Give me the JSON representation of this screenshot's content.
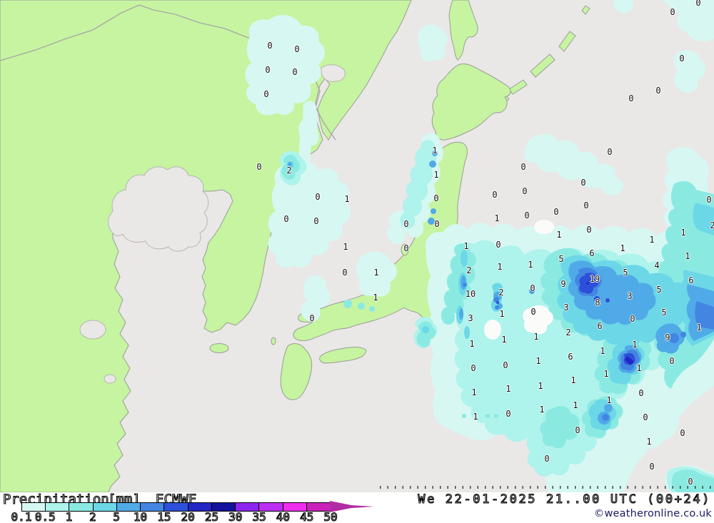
{
  "header": {
    "product": "Precipitation",
    "unit": "[mm]",
    "model": "ECMWF"
  },
  "footer": {
    "datetime": "We 22-01-2025 21..00 UTC (00+24)",
    "copyright": "©weatheronline.co.uk"
  },
  "legend": {
    "labels": [
      "0.1",
      "0.5",
      "1",
      "2",
      "5",
      "10",
      "15",
      "20",
      "25",
      "30",
      "35",
      "40",
      "45",
      "50"
    ],
    "colors": [
      "#d7f7f2",
      "#aef3ec",
      "#8aeae2",
      "#6cd7e7",
      "#51aae8",
      "#4386e2",
      "#2c50d9",
      "#2326c4",
      "#14139e",
      "#8d25ee",
      "#bd2ef2",
      "#ee2dee",
      "#cb21bb"
    ],
    "arrow_color": "#b12ca3"
  },
  "map": {
    "colors": {
      "land": "#c6f4a0",
      "sea": "#e9e8e6",
      "coastline": "#9b9b99",
      "label_text": "#101010",
      "precip_levels": [
        "#d7f7f2",
        "#aef3ec",
        "#8aeae2",
        "#6cd7e7",
        "#51aae8",
        "#4386e2",
        "#2c50d9",
        "#2326c4"
      ]
    },
    "precip_values": [
      [
        378,
        64,
        "0"
      ],
      [
        416,
        69,
        "0"
      ],
      [
        375,
        98,
        "0"
      ],
      [
        413,
        101,
        "0"
      ],
      [
        373,
        132,
        "0"
      ],
      [
        978,
        4,
        "0"
      ],
      [
        942,
        17,
        "0"
      ],
      [
        955,
        82,
        "0"
      ],
      [
        922,
        127,
        "0"
      ],
      [
        884,
        138,
        "0"
      ],
      [
        363,
        234,
        "0"
      ],
      [
        405,
        239,
        "2"
      ],
      [
        445,
        276,
        "0"
      ],
      [
        486,
        279,
        "1"
      ],
      [
        401,
        307,
        "0"
      ],
      [
        443,
        310,
        "0"
      ],
      [
        484,
        346,
        "1"
      ],
      [
        569,
        314,
        "0"
      ],
      [
        612,
        314,
        "0"
      ],
      [
        569,
        348,
        "0"
      ],
      [
        483,
        382,
        "0"
      ],
      [
        527,
        382,
        "1"
      ],
      [
        526,
        417,
        "1"
      ],
      [
        437,
        446,
        "0"
      ],
      [
        609,
        211,
        "1"
      ],
      [
        611,
        245,
        "1"
      ],
      [
        611,
        278,
        "0"
      ],
      [
        733,
        234,
        "0"
      ],
      [
        854,
        213,
        "0"
      ],
      [
        817,
        256,
        "0"
      ],
      [
        693,
        273,
        "0"
      ],
      [
        735,
        268,
        "0"
      ],
      [
        821,
        288,
        "0"
      ],
      [
        779,
        297,
        "0"
      ],
      [
        738,
        302,
        "0"
      ],
      [
        696,
        306,
        "1"
      ],
      [
        825,
        322,
        "0"
      ],
      [
        783,
        329,
        "1"
      ],
      [
        993,
        280,
        "0"
      ],
      [
        998,
        316,
        "2"
      ],
      [
        957,
        326,
        "1"
      ],
      [
        913,
        336,
        "1"
      ],
      [
        653,
        345,
        "1"
      ],
      [
        698,
        343,
        "0"
      ],
      [
        786,
        363,
        "5"
      ],
      [
        829,
        355,
        "6"
      ],
      [
        872,
        348,
        "1"
      ],
      [
        963,
        359,
        "1"
      ],
      [
        920,
        372,
        "4"
      ],
      [
        657,
        379,
        "2"
      ],
      [
        700,
        374,
        "1"
      ],
      [
        743,
        371,
        "1"
      ],
      [
        876,
        382,
        "5"
      ],
      [
        789,
        398,
        "9"
      ],
      [
        833,
        391,
        "19"
      ],
      [
        968,
        393,
        "6"
      ],
      [
        659,
        412,
        "10"
      ],
      [
        702,
        410,
        "2"
      ],
      [
        746,
        404,
        "0"
      ],
      [
        923,
        406,
        "5"
      ],
      [
        837,
        424,
        "8"
      ],
      [
        882,
        415,
        "3"
      ],
      [
        793,
        431,
        "3"
      ],
      [
        703,
        440,
        "1"
      ],
      [
        747,
        437,
        "0"
      ],
      [
        659,
        446,
        "3"
      ],
      [
        930,
        438,
        "5"
      ],
      [
        886,
        447,
        "0"
      ],
      [
        840,
        457,
        "6"
      ],
      [
        796,
        466,
        "2"
      ],
      [
        935,
        473,
        "9"
      ],
      [
        979,
        459,
        "1"
      ],
      [
        661,
        482,
        "1"
      ],
      [
        706,
        476,
        "1"
      ],
      [
        751,
        472,
        "1"
      ],
      [
        889,
        483,
        "1"
      ],
      [
        799,
        500,
        "6"
      ],
      [
        844,
        492,
        "1"
      ],
      [
        941,
        506,
        "0"
      ],
      [
        663,
        516,
        "0"
      ],
      [
        708,
        512,
        "0"
      ],
      [
        754,
        506,
        "1"
      ],
      [
        895,
        516,
        "1"
      ],
      [
        849,
        524,
        "1"
      ],
      [
        664,
        550,
        "1"
      ],
      [
        712,
        545,
        "1"
      ],
      [
        757,
        541,
        "1"
      ],
      [
        803,
        533,
        "1"
      ],
      [
        898,
        551,
        "0"
      ],
      [
        853,
        561,
        "1"
      ],
      [
        666,
        584,
        "1"
      ],
      [
        712,
        580,
        "0"
      ],
      [
        759,
        574,
        "1"
      ],
      [
        806,
        568,
        "1"
      ],
      [
        904,
        585,
        "0"
      ],
      [
        809,
        603,
        "0"
      ],
      [
        956,
        607,
        "0"
      ],
      [
        909,
        619,
        "1"
      ],
      [
        766,
        643,
        "0"
      ],
      [
        913,
        654,
        "0"
      ],
      [
        967,
        675,
        "0"
      ]
    ]
  }
}
